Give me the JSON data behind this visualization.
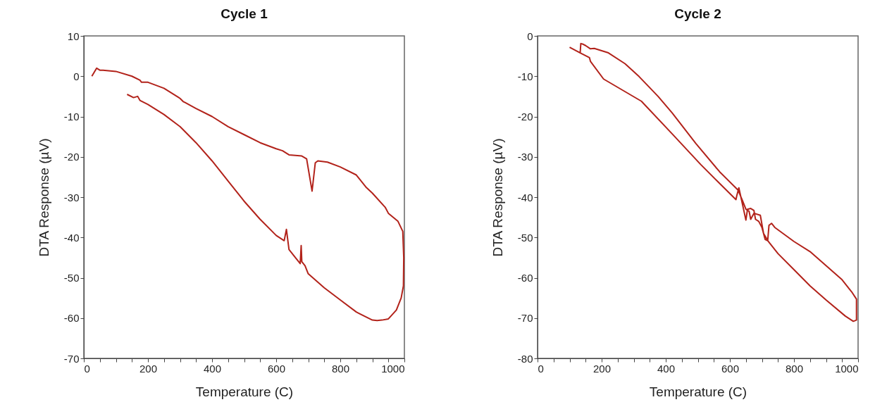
{
  "chart_data": [
    {
      "type": "line",
      "title": "Cycle 1",
      "xlabel": "Temperature (C)",
      "ylabel": "DTA Response (µV)",
      "xlim": [
        0,
        1000
      ],
      "ylim": [
        -70,
        10
      ],
      "xticks": [
        0,
        {
          "value": 50,
          "label": null
        },
        200,
        {
          "value": 100,
          "label": null
        },
        {
          "value": 150,
          "label": null
        },
        {
          "value": 250,
          "label": null
        },
        {
          "value": 300,
          "label": null
        },
        {
          "value": 350,
          "label": null
        },
        400,
        {
          "value": 450,
          "label": null
        },
        {
          "value": 500,
          "label": null
        },
        {
          "value": 550,
          "label": null
        },
        600,
        {
          "value": 650,
          "label": null
        },
        {
          "value": 700,
          "label": null
        },
        {
          "value": 750,
          "label": null
        },
        800,
        {
          "value": 850,
          "label": null
        },
        {
          "value": 900,
          "label": null
        },
        {
          "value": 950,
          "label": null
        },
        1000
      ],
      "yticks": [
        -70,
        -60,
        -50,
        -40,
        -30,
        -20,
        -10,
        0,
        10
      ],
      "grid": false,
      "series": [
        {
          "color": "#b2221a",
          "x": [
            25,
            40,
            50,
            60,
            100,
            150,
            175,
            180,
            200,
            250,
            300,
            310,
            315,
            350,
            400,
            450,
            500,
            550,
            600,
            620,
            640,
            680,
            695,
            712,
            722,
            730,
            760,
            800,
            850,
            880,
            900,
            940,
            950,
            980,
            995,
            998,
            997,
            990,
            975,
            950,
            930,
            915,
            900,
            850,
            800,
            750,
            700,
            690,
            680,
            678,
            675,
            660,
            640,
            632,
            625,
            600,
            550,
            500,
            450,
            400,
            350,
            300,
            250,
            200,
            175,
            168,
            155,
            135
          ],
          "values": [
            0,
            2,
            1.5,
            1.5,
            1.2,
            0,
            -1,
            -1.5,
            -1.5,
            -3,
            -5.5,
            -6.3,
            -6.5,
            -8,
            -10,
            -12.5,
            -14.5,
            -16.5,
            -18,
            -18.5,
            -19.5,
            -19.8,
            -20.5,
            -28.5,
            -21.5,
            -21,
            -21.3,
            -22.5,
            -24.5,
            -27.5,
            -29,
            -32.5,
            -34,
            -36,
            -38.5,
            -45,
            -52,
            -55,
            -58,
            -60.2,
            -60.5,
            -60.6,
            -60.5,
            -58.5,
            -55.5,
            -52.5,
            -49,
            -47,
            -46,
            -42,
            -46.5,
            -45,
            -43,
            -38,
            -40.8,
            -39.5,
            -35.5,
            -31,
            -26,
            -21,
            -16.5,
            -12.5,
            -9.5,
            -7,
            -6,
            -5,
            -5.3,
            -4.5
          ]
        }
      ]
    },
    {
      "type": "line",
      "title": "Cycle 2",
      "xlabel": "Temperature (C)",
      "ylabel": "DTA Response (µV)",
      "xlim": [
        0,
        1000
      ],
      "ylim": [
        -80,
        0
      ],
      "xticks": [
        0,
        {
          "value": 50,
          "label": null
        },
        200,
        {
          "value": 100,
          "label": null
        },
        {
          "value": 150,
          "label": null
        },
        {
          "value": 250,
          "label": null
        },
        {
          "value": 300,
          "label": null
        },
        {
          "value": 350,
          "label": null
        },
        400,
        {
          "value": 450,
          "label": null
        },
        {
          "value": 500,
          "label": null
        },
        {
          "value": 550,
          "label": null
        },
        600,
        {
          "value": 650,
          "label": null
        },
        {
          "value": 700,
          "label": null
        },
        {
          "value": 750,
          "label": null
        },
        800,
        {
          "value": 850,
          "label": null
        },
        {
          "value": 900,
          "label": null
        },
        {
          "value": 950,
          "label": null
        },
        1000
      ],
      "yticks": [
        -80,
        -70,
        -60,
        -50,
        -40,
        -30,
        -20,
        -10,
        0
      ],
      "grid": false,
      "series": [
        {
          "color": "#b2221a",
          "x": [
            100,
            133,
            162,
            165,
            206,
            324,
            420,
            509,
            568,
            619,
            622,
            628,
            640,
            650,
            655,
            665,
            675,
            680,
            690,
            700,
            710,
            718,
            722,
            730,
            740,
            800,
            850,
            900,
            950,
            980,
            995,
            995,
            985,
            960,
            900,
            850,
            800,
            750,
            720,
            705,
            695,
            675,
            665,
            660,
            650,
            640,
            626,
            568,
            494,
            420,
            376,
            317,
            273,
            221,
            177,
            165,
            150,
            140,
            135,
            133
          ],
          "values": [
            -2.8,
            -4.2,
            -5.4,
            -6.3,
            -10.7,
            -16.2,
            -24.3,
            -31.9,
            -36.6,
            -40.6,
            -39.5,
            -37.7,
            -42,
            -45.7,
            -43,
            -42.8,
            -43.3,
            -45.5,
            -46,
            -47.5,
            -50.5,
            -50.8,
            -47,
            -46.5,
            -47.5,
            -51,
            -53.5,
            -57,
            -60.5,
            -63.5,
            -65.3,
            -70.5,
            -70.8,
            -69.5,
            -65.5,
            -62,
            -58,
            -54,
            -51,
            -49,
            -44.5,
            -44,
            -45.5,
            -43.5,
            -43,
            -41,
            -38.3,
            -33.7,
            -26.7,
            -19.1,
            -15,
            -10.1,
            -6.9,
            -4.2,
            -3.1,
            -3.2,
            -2.4,
            -2,
            -1.9,
            -4.2
          ]
        }
      ]
    }
  ]
}
